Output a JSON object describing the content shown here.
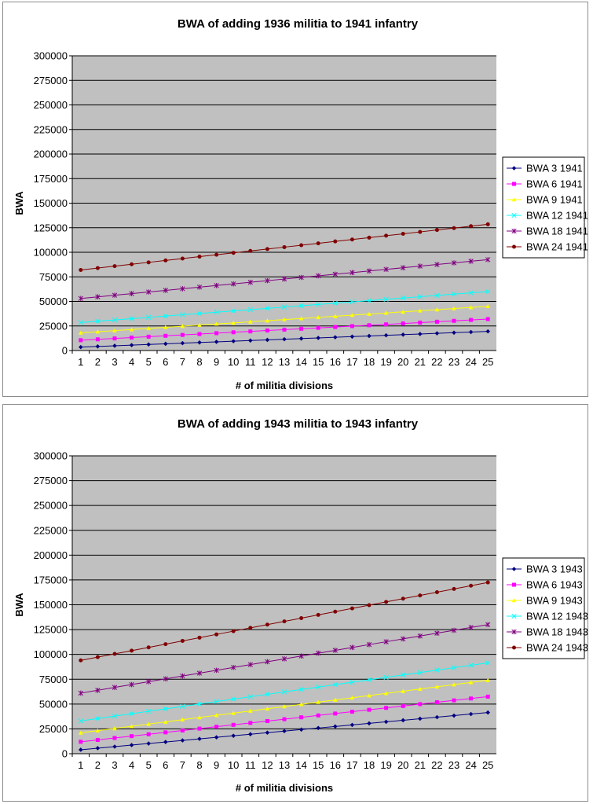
{
  "chart_data": [
    {
      "type": "line",
      "title": "BWA of adding 1936 militia to 1941 infantry",
      "xlabel": "# of militia divisions",
      "ylabel": "BWA",
      "ylim": [
        0,
        300000
      ],
      "yticks": [
        "0",
        "25000",
        "50000",
        "75000",
        "100000",
        "125000",
        "150000",
        "175000",
        "200000",
        "225000",
        "250000",
        "275000",
        "300000"
      ],
      "categories": [
        "1",
        "2",
        "3",
        "4",
        "5",
        "6",
        "7",
        "8",
        "9",
        "10",
        "11",
        "12",
        "13",
        "14",
        "15",
        "16",
        "17",
        "18",
        "19",
        "20",
        "21",
        "22",
        "23",
        "24",
        "25"
      ],
      "grid": true,
      "legend": "right",
      "series": [
        {
          "name": "BWA 3 1941",
          "color": "#000080",
          "marker": "diamond",
          "start": 3500,
          "end": 19500
        },
        {
          "name": "BWA 6 1941",
          "color": "#ff00ff",
          "marker": "square",
          "start": 10500,
          "end": 32000
        },
        {
          "name": "BWA 9 1941",
          "color": "#ffff00",
          "marker": "triangle",
          "start": 18000,
          "end": 45000
        },
        {
          "name": "BWA 12 1941",
          "color": "#00ffff",
          "marker": "x",
          "start": 28500,
          "end": 60000
        },
        {
          "name": "BWA 18 1941",
          "color": "#800080",
          "marker": "star",
          "start": 53000,
          "end": 92500
        },
        {
          "name": "BWA 24 1941",
          "color": "#800000",
          "marker": "circle",
          "start": 82000,
          "end": 128500
        }
      ]
    },
    {
      "type": "line",
      "title": "BWA of adding 1943 militia to 1943 infantry",
      "xlabel": "# of militia divisions",
      "ylabel": "BWA",
      "ylim": [
        0,
        300000
      ],
      "yticks": [
        "0",
        "25000",
        "50000",
        "75000",
        "100000",
        "125000",
        "150000",
        "175000",
        "200000",
        "225000",
        "250000",
        "275000",
        "300000"
      ],
      "categories": [
        "1",
        "2",
        "3",
        "4",
        "5",
        "6",
        "7",
        "8",
        "9",
        "10",
        "11",
        "12",
        "13",
        "14",
        "15",
        "16",
        "17",
        "18",
        "19",
        "20",
        "21",
        "22",
        "23",
        "24",
        "25"
      ],
      "grid": true,
      "legend": "right",
      "series": [
        {
          "name": "BWA 3 1943",
          "color": "#000080",
          "marker": "diamond",
          "start": 4000,
          "end": 41500
        },
        {
          "name": "BWA 6 1943",
          "color": "#ff00ff",
          "marker": "square",
          "start": 12000,
          "end": 57500
        },
        {
          "name": "BWA 9 1943",
          "color": "#ffff00",
          "marker": "triangle",
          "start": 21000,
          "end": 74000
        },
        {
          "name": "BWA 12 1943",
          "color": "#00ffff",
          "marker": "x",
          "start": 33000,
          "end": 91500
        },
        {
          "name": "BWA 18 1943",
          "color": "#800080",
          "marker": "star",
          "start": 61000,
          "end": 130000
        },
        {
          "name": "BWA 24 1943",
          "color": "#800000",
          "marker": "circle",
          "start": 94000,
          "end": 172500
        }
      ]
    }
  ]
}
